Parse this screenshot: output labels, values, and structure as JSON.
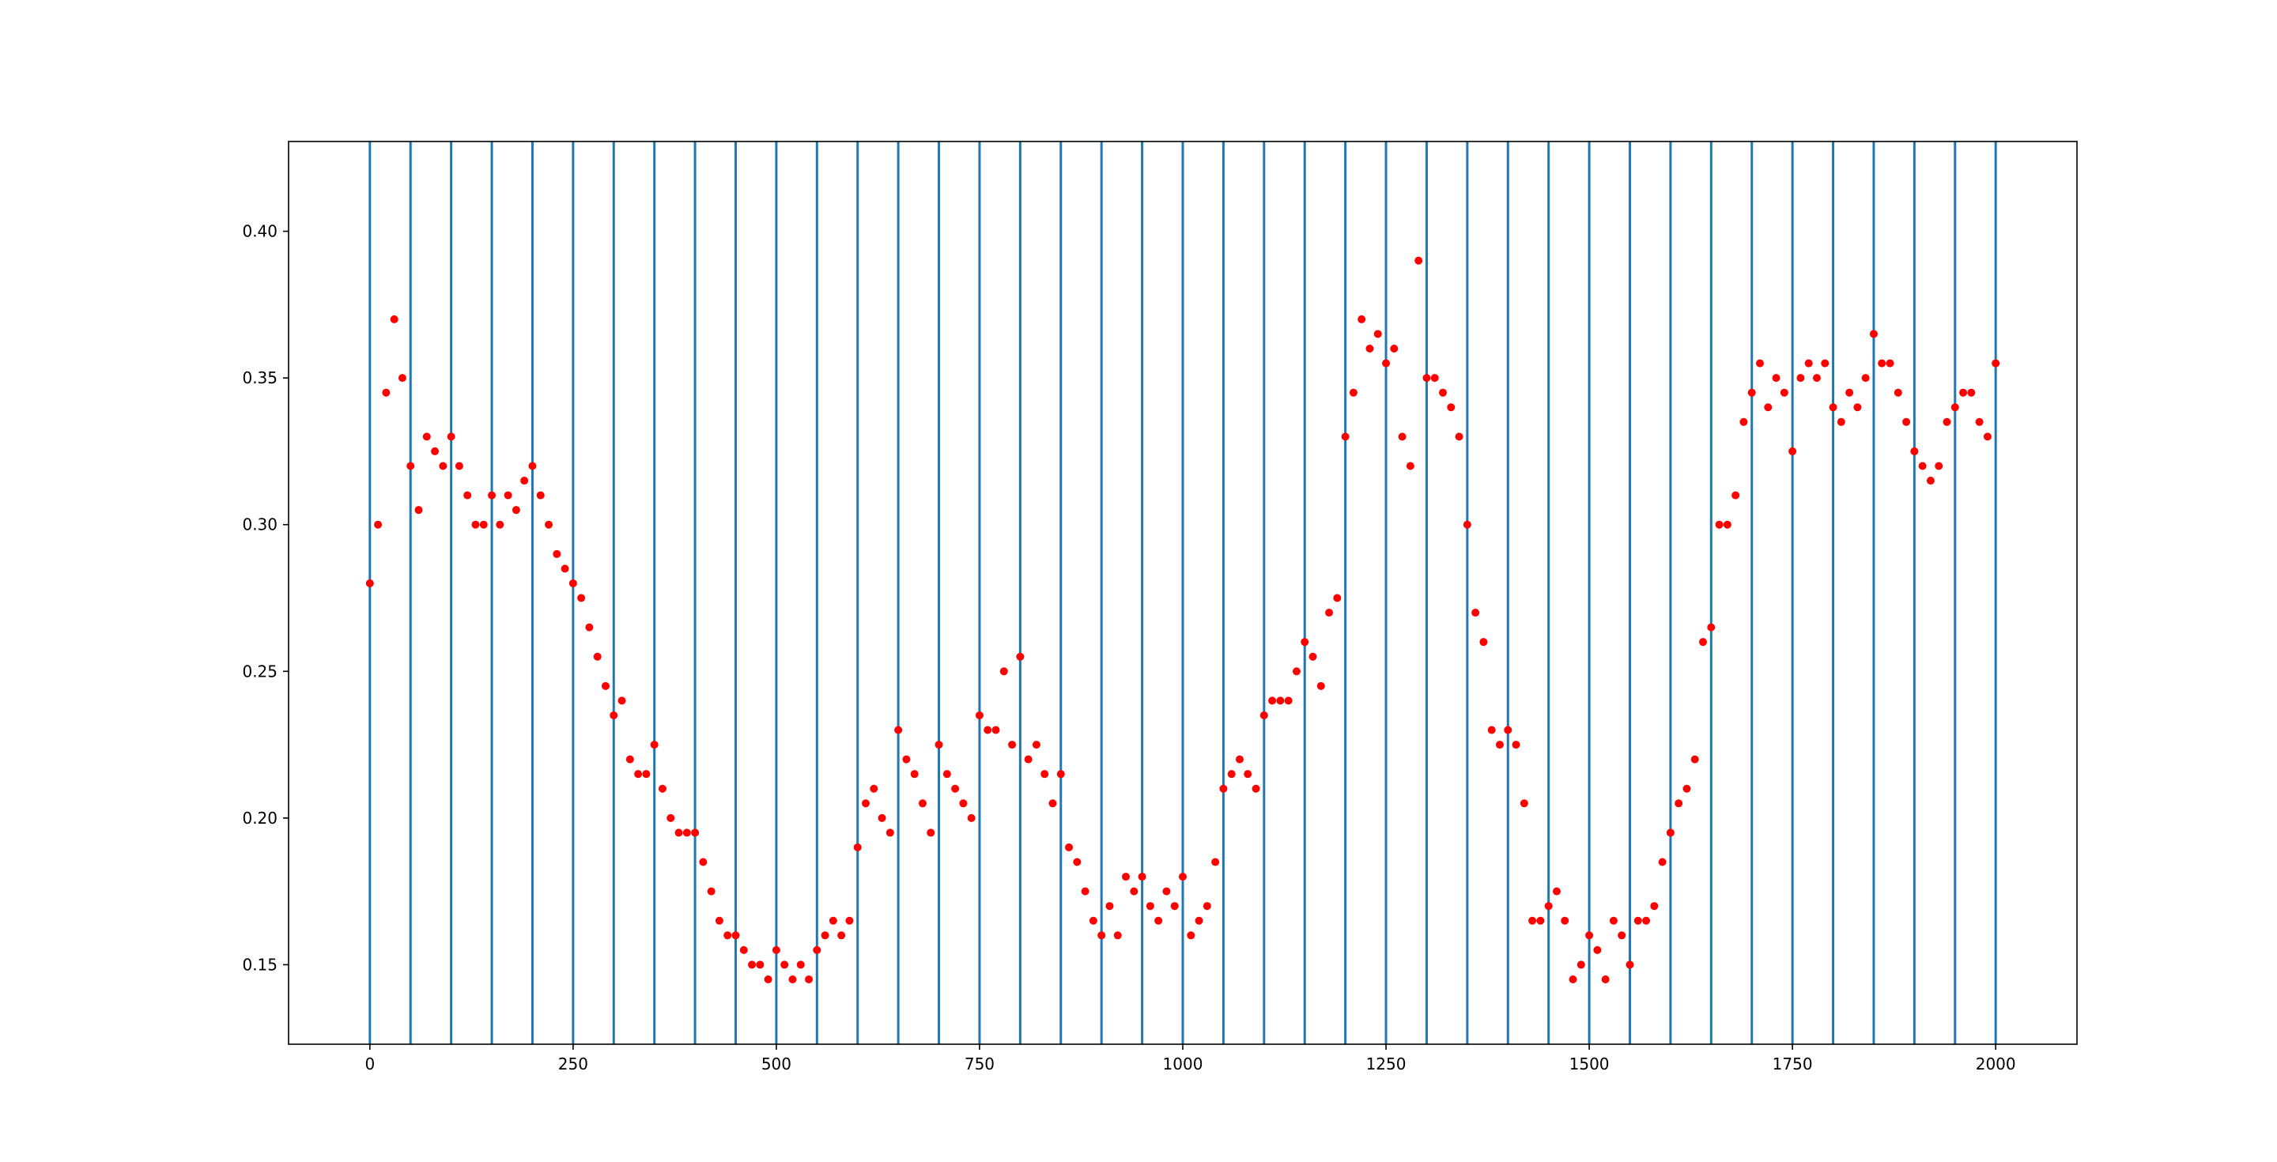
{
  "chart_data": {
    "type": "scatter",
    "x": [
      0,
      10,
      20,
      30,
      40,
      50,
      60,
      70,
      80,
      90,
      100,
      110,
      120,
      130,
      140,
      150,
      160,
      170,
      180,
      190,
      200,
      210,
      220,
      230,
      240,
      250,
      260,
      270,
      280,
      290,
      300,
      310,
      320,
      330,
      340,
      350,
      360,
      370,
      380,
      390,
      400,
      410,
      420,
      430,
      440,
      450,
      460,
      470,
      480,
      490,
      500,
      510,
      520,
      530,
      540,
      550,
      560,
      570,
      580,
      590,
      600,
      610,
      620,
      630,
      640,
      650,
      660,
      670,
      680,
      690,
      700,
      710,
      720,
      730,
      740,
      750,
      760,
      770,
      780,
      790,
      800,
      810,
      820,
      830,
      840,
      850,
      860,
      870,
      880,
      890,
      900,
      910,
      920,
      930,
      940,
      950,
      960,
      970,
      980,
      990,
      1000,
      1010,
      1020,
      1030,
      1040,
      1050,
      1060,
      1070,
      1080,
      1090,
      1100,
      1110,
      1120,
      1130,
      1140,
      1150,
      1160,
      1170,
      1180,
      1190,
      1200,
      1210,
      1220,
      1230,
      1240,
      1250,
      1260,
      1270,
      1280,
      1290,
      1300,
      1310,
      1320,
      1330,
      1340,
      1350,
      1360,
      1370,
      1380,
      1390,
      1400,
      1410,
      1420,
      1430,
      1440,
      1450,
      1460,
      1470,
      1480,
      1490,
      1500,
      1510,
      1520,
      1530,
      1540,
      1550,
      1560,
      1570,
      1580,
      1590,
      1600,
      1610,
      1620,
      1630,
      1640,
      1650,
      1660,
      1670,
      1680,
      1690,
      1700,
      1710,
      1720,
      1730,
      1740,
      1750,
      1760,
      1770,
      1780,
      1790,
      1800,
      1810,
      1820,
      1830,
      1840,
      1850,
      1860,
      1870,
      1880,
      1890,
      1900,
      1910,
      1920,
      1930,
      1940,
      1950,
      1960,
      1970,
      1980,
      1990,
      2000
    ],
    "values": [
      0.28,
      0.3,
      0.345,
      0.37,
      0.35,
      0.32,
      0.305,
      0.33,
      0.325,
      0.32,
      0.33,
      0.32,
      0.31,
      0.3,
      0.3,
      0.31,
      0.3,
      0.31,
      0.305,
      0.315,
      0.32,
      0.31,
      0.3,
      0.29,
      0.285,
      0.28,
      0.275,
      0.265,
      0.255,
      0.245,
      0.235,
      0.24,
      0.22,
      0.215,
      0.215,
      0.225,
      0.21,
      0.2,
      0.195,
      0.195,
      0.195,
      0.185,
      0.175,
      0.165,
      0.16,
      0.16,
      0.155,
      0.15,
      0.15,
      0.145,
      0.155,
      0.15,
      0.145,
      0.15,
      0.145,
      0.155,
      0.16,
      0.165,
      0.16,
      0.165,
      0.19,
      0.205,
      0.21,
      0.2,
      0.195,
      0.23,
      0.22,
      0.215,
      0.205,
      0.195,
      0.225,
      0.215,
      0.21,
      0.205,
      0.2,
      0.235,
      0.23,
      0.23,
      0.25,
      0.225,
      0.255,
      0.22,
      0.225,
      0.215,
      0.205,
      0.215,
      0.19,
      0.185,
      0.175,
      0.165,
      0.16,
      0.17,
      0.16,
      0.18,
      0.175,
      0.18,
      0.17,
      0.165,
      0.175,
      0.17,
      0.18,
      0.16,
      0.165,
      0.17,
      0.185,
      0.21,
      0.215,
      0.22,
      0.215,
      0.21,
      0.235,
      0.24,
      0.24,
      0.24,
      0.25,
      0.26,
      0.255,
      0.245,
      0.27,
      0.275,
      0.33,
      0.345,
      0.37,
      0.36,
      0.365,
      0.355,
      0.36,
      0.33,
      0.32,
      0.39,
      0.35,
      0.35,
      0.345,
      0.34,
      0.33,
      0.3,
      0.27,
      0.26,
      0.23,
      0.225,
      0.23,
      0.225,
      0.205,
      0.165,
      0.165,
      0.17,
      0.175,
      0.165,
      0.145,
      0.15,
      0.16,
      0.155,
      0.145,
      0.165,
      0.16,
      0.15,
      0.165,
      0.165,
      0.17,
      0.185,
      0.195,
      0.205,
      0.21,
      0.22,
      0.26,
      0.265,
      0.3,
      0.3,
      0.31,
      0.335,
      0.345,
      0.355,
      0.34,
      0.35,
      0.345,
      0.325,
      0.35,
      0.355,
      0.35,
      0.355,
      0.34,
      0.335,
      0.345,
      0.34,
      0.35,
      0.365,
      0.355,
      0.355,
      0.345,
      0.335,
      0.325,
      0.32,
      0.315,
      0.32,
      0.335,
      0.34,
      0.345,
      0.345,
      0.335,
      0.33,
      0.355
    ],
    "color": "#ff0000",
    "vlines": [
      0,
      50,
      100,
      150,
      200,
      250,
      300,
      350,
      400,
      450,
      500,
      550,
      600,
      650,
      700,
      750,
      800,
      850,
      900,
      950,
      1000,
      1050,
      1100,
      1150,
      1200,
      1250,
      1300,
      1350,
      1400,
      1450,
      1500,
      1550,
      1600,
      1650,
      1700,
      1750,
      1800,
      1850,
      1900,
      1950,
      2000
    ],
    "vline_color": "#1f77b4",
    "xlim": [
      -100,
      2100
    ],
    "ylim": [
      0.1229,
      0.4306
    ],
    "xticks": [
      0,
      250,
      500,
      750,
      1000,
      1250,
      1500,
      1750,
      2000
    ],
    "yticks": [
      0.15,
      {
        "value": 0.2,
        "label": "0.20"
      },
      0.25,
      {
        "value": 0.3,
        "label": "0.30"
      },
      0.35,
      {
        "value": 0.4,
        "label": "0.40"
      }
    ]
  }
}
